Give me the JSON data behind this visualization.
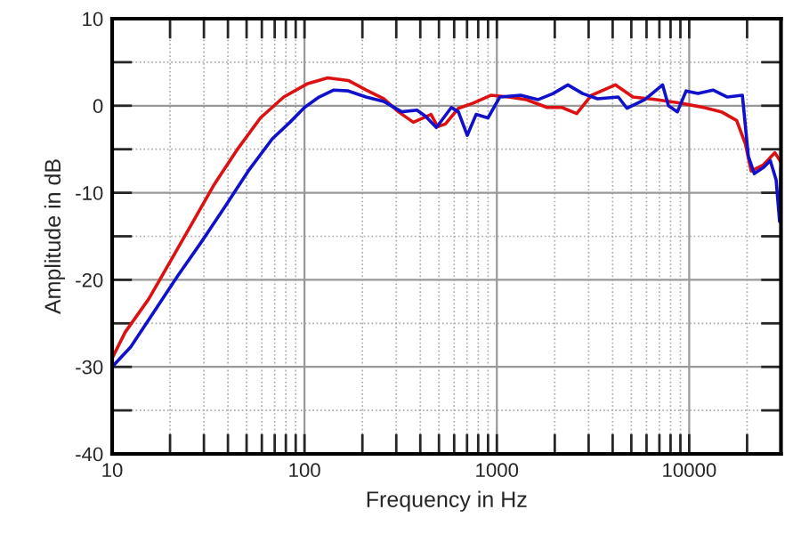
{
  "chart_data": {
    "type": "line",
    "xlabel": "Frequency in Hz",
    "ylabel": "Amplitude in dB",
    "log": "x",
    "grid": true,
    "marker": "none",
    "line_style": "solid",
    "xlim": [
      10,
      30000
    ],
    "xticks": [
      10,
      100,
      1000,
      10000
    ],
    "ylim": [
      -40,
      10
    ],
    "yticks": [
      -40,
      -30,
      -20,
      -10,
      0,
      10
    ],
    "series": [
      {
        "color": "#dd1111",
        "x": [
          10,
          11.7,
          15.5,
          19.8,
          25.3,
          33.6,
          44.5,
          59,
          78,
          103,
          132,
          169,
          209,
          258,
          308,
          368,
          455,
          492,
          540,
          631,
          753,
          931,
          1152,
          1425,
          1826,
          2180,
          2600,
          3100,
          4130,
          5100,
          6780,
          9000,
          11900,
          14700,
          17650,
          19600,
          21000,
          24300,
          27900,
          30000
        ],
        "values": [
          -29,
          -26,
          -22.2,
          -18.1,
          -14,
          -9.2,
          -5.1,
          -1.4,
          1.0,
          2.5,
          3.2,
          2.9,
          1.8,
          0.8,
          -0.7,
          -1.9,
          -1.0,
          -2.4,
          -2.1,
          -0.3,
          0.3,
          1.2,
          1.0,
          0.7,
          -0.2,
          -0.2,
          -0.9,
          1.2,
          2.4,
          1.0,
          0.7,
          0.3,
          -0.2,
          -0.7,
          -1.7,
          -4.4,
          -7.5,
          -6.8,
          -5.4,
          -6.5
        ]
      },
      {
        "color": "#1111cc",
        "x": [
          10,
          12.5,
          16.6,
          22,
          29,
          38.6,
          51,
          68,
          84,
          100,
          119,
          142,
          169,
          209,
          258,
          320,
          384,
          425,
          485,
          580,
          631,
          702,
          780,
          899,
          1036,
          1328,
          1641,
          1960,
          2340,
          2794,
          3336,
          4280,
          4750,
          5880,
          7270,
          7800,
          8680,
          9640,
          11100,
          13300,
          15800,
          18900,
          20300,
          21800,
          24300,
          26400,
          28300,
          29500,
          30000
        ],
        "values": [
          -30,
          -27.7,
          -23.6,
          -19.5,
          -15.7,
          -11.6,
          -7.5,
          -3.8,
          -1.9,
          -0.2,
          1.0,
          1.8,
          1.7,
          1.0,
          0.5,
          -0.7,
          -0.5,
          -1.2,
          -2.5,
          -0.2,
          -0.7,
          -3.4,
          -1.0,
          -1.4,
          1.0,
          1.2,
          0.7,
          1.4,
          2.4,
          1.4,
          0.8,
          1.0,
          -0.3,
          0.7,
          2.4,
          0,
          -0.7,
          1.7,
          1.4,
          1.8,
          1.0,
          1.2,
          -5.8,
          -7.8,
          -7.1,
          -6.3,
          -8.5,
          -13.3,
          -7.1
        ]
      }
    ]
  }
}
